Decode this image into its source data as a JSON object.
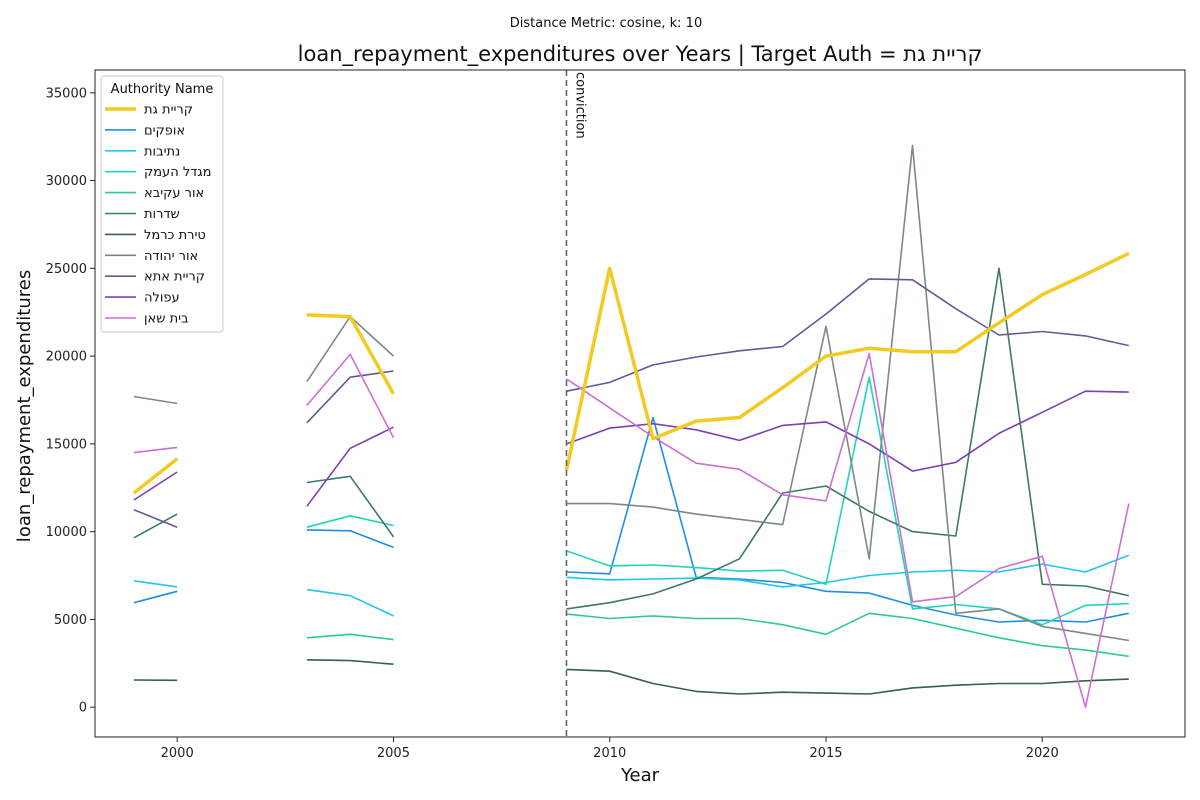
{
  "chart_data": {
    "type": "line",
    "subtitle": "Distance Metric: cosine, k: 10",
    "title": "loan_repayment_expenditures over Years | Target Auth = קריית גת",
    "xlabel": "Year",
    "ylabel": "loan_repayment_expenditures",
    "xlim": [
      1998.1,
      2023.3
    ],
    "ylim": [
      -1700,
      36300
    ],
    "xticks": [
      2000,
      2005,
      2010,
      2015,
      2020
    ],
    "yticks": [
      0,
      5000,
      10000,
      15000,
      20000,
      25000,
      30000,
      35000
    ],
    "grid": false,
    "legend": {
      "title": "Authority Name",
      "placement": "top-left"
    },
    "annotation": {
      "x": 2009,
      "label": "conviction",
      "style": "dashed-vertical",
      "color": "#666666"
    },
    "x": [
      1999,
      2000,
      2003,
      2004,
      2005,
      2009,
      2010,
      2011,
      2012,
      2013,
      2014,
      2015,
      2016,
      2017,
      2018,
      2019,
      2020,
      2021,
      2022
    ],
    "series": [
      {
        "name": "קריית גת",
        "color": "#f2ca20",
        "width": 3.5,
        "target": true,
        "values": [
          12200,
          14150,
          22350,
          22250,
          17850,
          13500,
          25000,
          15300,
          16300,
          16500,
          18200,
          20000,
          20450,
          20250,
          20250,
          21900,
          23500,
          24650,
          25850
        ]
      },
      {
        "name": "אופקים",
        "color": "#1f8fe0",
        "width": 1.6,
        "values": [
          5950,
          6600,
          10100,
          10050,
          9100,
          7700,
          7600,
          16500,
          7400,
          7300,
          7100,
          6600,
          6500,
          5800,
          5250,
          4850,
          4950,
          4850,
          5350
        ]
      },
      {
        "name": "נתיבות",
        "color": "#22c7e8",
        "width": 1.6,
        "values": [
          7200,
          6850,
          6700,
          6350,
          5200,
          7400,
          7250,
          7300,
          7350,
          7250,
          6850,
          7100,
          7500,
          7700,
          7800,
          7700,
          8150,
          7700,
          8650
        ]
      },
      {
        "name": "מגדל העמק",
        "color": "#1fd6b8",
        "width": 1.6,
        "values": [
          null,
          null,
          10250,
          10900,
          10350,
          8900,
          8050,
          8100,
          7950,
          7750,
          7800,
          7000,
          18800,
          5600,
          5850,
          5600,
          4700,
          5800,
          5900
        ]
      },
      {
        "name": "אור עקיבא",
        "color": "#2ecc8c",
        "width": 1.6,
        "values": [
          null,
          null,
          3950,
          4150,
          3850,
          5300,
          5050,
          5200,
          5050,
          5050,
          4700,
          4150,
          5350,
          5050,
          4500,
          3950,
          3500,
          3250,
          2900
        ]
      },
      {
        "name": "שדרות",
        "color": "#3c7a66",
        "width": 1.6,
        "values": [
          9650,
          11000,
          12800,
          13150,
          9700,
          5600,
          5950,
          6450,
          7300,
          8450,
          12200,
          12600,
          11150,
          10000,
          9750,
          25000,
          7000,
          6900,
          6350
        ]
      },
      {
        "name": "טירת כרמל",
        "color": "#355e55",
        "width": 1.6,
        "values": [
          1550,
          1530,
          2700,
          2650,
          2450,
          2150,
          2050,
          1350,
          900,
          750,
          850,
          800,
          750,
          1100,
          1250,
          1350,
          1350,
          1500,
          1600
        ]
      },
      {
        "name": "אור יהודה",
        "color": "#7b8a88",
        "width": 1.6,
        "values": [
          17700,
          17300,
          18550,
          22250,
          20000,
          11600,
          11600,
          11400,
          11000,
          10700,
          10400,
          21700,
          8450,
          32000,
          5350,
          5600,
          4600,
          4200,
          3800
        ]
      },
      {
        "name": "קריית אתא",
        "color": "#62589a",
        "width": 1.6,
        "values": [
          11250,
          10250,
          16200,
          18800,
          19150,
          18000,
          18500,
          19500,
          19950,
          20300,
          20550,
          22400,
          24400,
          24350,
          22700,
          21200,
          21400,
          21150,
          20600
        ]
      },
      {
        "name": "עפולה",
        "color": "#7e3fb0",
        "width": 1.6,
        "values": [
          11800,
          13400,
          11450,
          14750,
          15950,
          15000,
          15900,
          16150,
          15800,
          15200,
          16050,
          16250,
          15000,
          13450,
          13950,
          15600,
          16800,
          18000,
          17950
        ]
      },
      {
        "name": "בית שאן",
        "color": "#cc6fd4",
        "width": 1.6,
        "values": [
          14500,
          14800,
          17200,
          20100,
          15350,
          18700,
          17050,
          15400,
          13900,
          13550,
          12100,
          11750,
          20150,
          6000,
          6300,
          7900,
          8600,
          0,
          11600
        ]
      }
    ]
  }
}
